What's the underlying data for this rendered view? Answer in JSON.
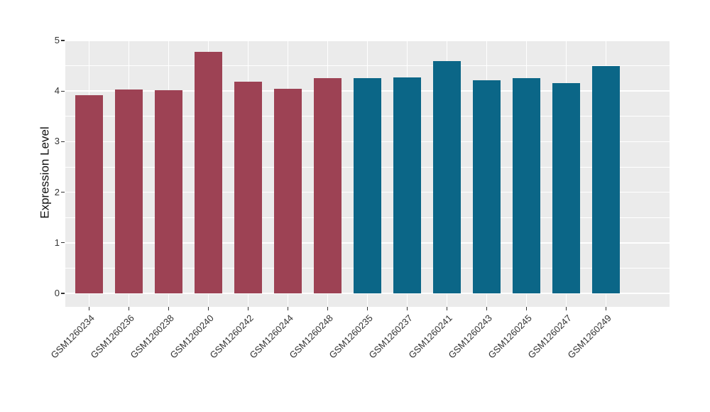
{
  "chart_data": {
    "type": "bar",
    "title": "",
    "xlabel": "",
    "ylabel": "Expression Level",
    "ylim": [
      0,
      5
    ],
    "y_ticks": [
      0,
      1,
      2,
      3,
      4,
      5
    ],
    "minor_grid_step": 0.5,
    "grid": "white major and minor gridlines on gray panel",
    "legend_position": "none",
    "x_tick_rotation_deg": 45,
    "categories": [
      "GSM1260234",
      "GSM1260236",
      "GSM1260238",
      "GSM1260240",
      "GSM1260242",
      "GSM1260244",
      "GSM1260248",
      "GSM1260235",
      "GSM1260237",
      "GSM1260241",
      "GSM1260243",
      "GSM1260245",
      "GSM1260247",
      "GSM1260249"
    ],
    "values": [
      3.92,
      4.03,
      4.01,
      4.77,
      4.19,
      4.04,
      4.26,
      4.26,
      4.27,
      4.59,
      4.21,
      4.25,
      4.16,
      4.5
    ],
    "bar_colors": [
      "#9D4254",
      "#9D4254",
      "#9D4254",
      "#9D4254",
      "#9D4254",
      "#9D4254",
      "#9D4254",
      "#0B6687",
      "#0B6687",
      "#0B6687",
      "#0B6687",
      "#0B6687",
      "#0B6687",
      "#0B6687"
    ]
  },
  "style": {
    "panel_background": "#EBEBEB",
    "gridline_color": "#FFFFFF",
    "axis_text_color": "#333333",
    "axis_title_color": "#111111",
    "group1_color": "#9D4254",
    "group2_color": "#0B6687",
    "figure_background": "#FFFFFF"
  }
}
